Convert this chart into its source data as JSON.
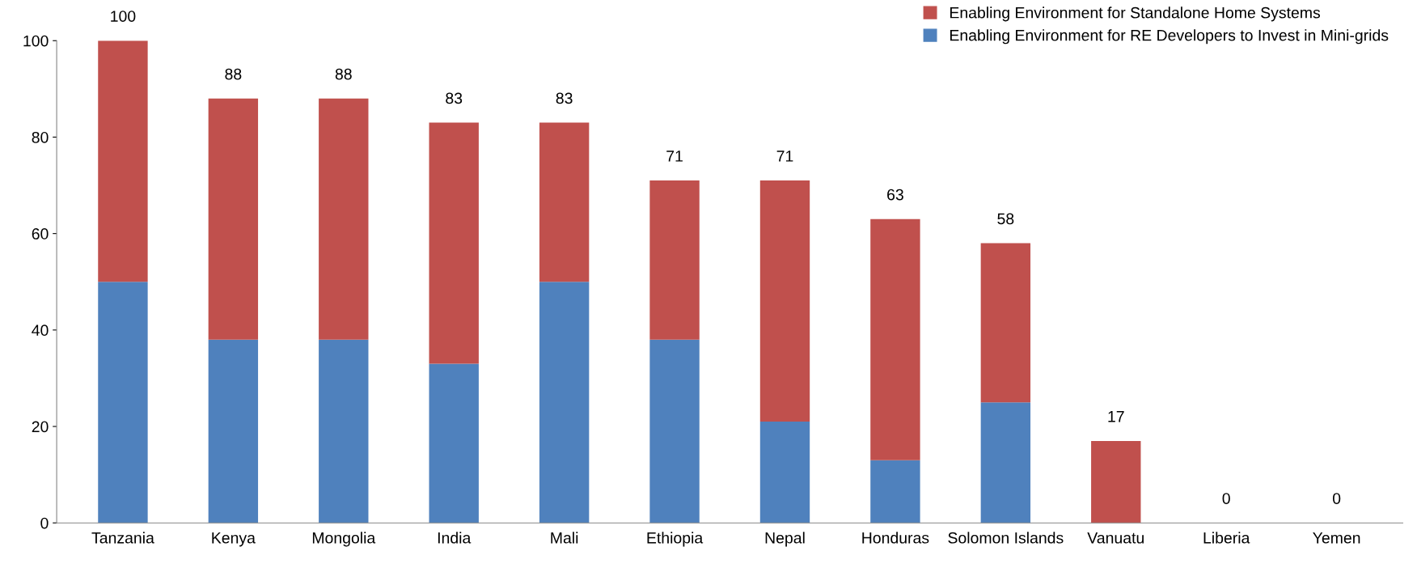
{
  "chart_data": {
    "type": "bar",
    "stacked": true,
    "categories": [
      "Tanzania",
      "Kenya",
      "Mongolia",
      "India",
      "Mali",
      "Ethiopia",
      "Nepal",
      "Honduras",
      "Solomon Islands",
      "Vanuatu",
      "Liberia",
      "Yemen"
    ],
    "series": [
      {
        "name": "Enabling Environment for RE Developers to Invest in Mini-grids",
        "color": "#4f81bd",
        "values": [
          50,
          38,
          38,
          33,
          50,
          38,
          21,
          13,
          25,
          0,
          0,
          0
        ]
      },
      {
        "name": "Enabling Environment for Standalone Home Systems",
        "color": "#c0504d",
        "values": [
          50,
          50,
          50,
          50,
          33,
          33,
          50,
          50,
          33,
          17,
          0,
          0
        ]
      }
    ],
    "totals": [
      "100",
      "88",
      "88",
      "83",
      "83",
      "71",
      "71",
      "63",
      "58",
      "17",
      "0",
      "0"
    ],
    "ylim": [
      0,
      100
    ],
    "yticks": [
      0,
      20,
      40,
      60,
      80,
      100
    ],
    "grid": false,
    "legend": "top right"
  }
}
